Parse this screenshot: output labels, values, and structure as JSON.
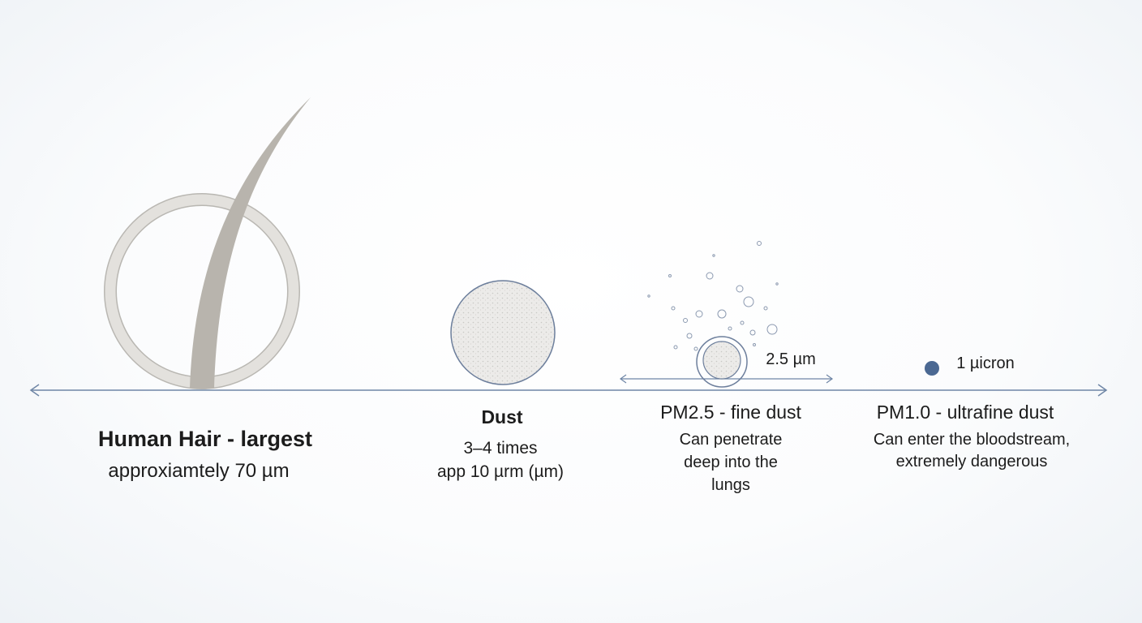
{
  "items": [
    {
      "title": "Human Hair - largest",
      "lines": [
        "approxiamtely 70 µm"
      ]
    },
    {
      "title": "Dust",
      "lines": [
        "3–4 times",
        "app 10 µrm (µm)"
      ]
    },
    {
      "title": "PM2.5 - fine dust",
      "lines": [
        "Can penetrate",
        "deep into the",
        "lungs"
      ],
      "size_label": "2.5 µm"
    },
    {
      "title": "PM1.0 - ultrafine dust",
      "lines": [
        "Can enter the bloodstream,",
        "extremely dangerous"
      ],
      "size_label": "1 µicron"
    }
  ],
  "colors": {
    "axis": "#6f86a6",
    "hair": "#d9d7d3",
    "dust_border": "#6d7f9c",
    "pm1_dot": "#4b6892"
  }
}
